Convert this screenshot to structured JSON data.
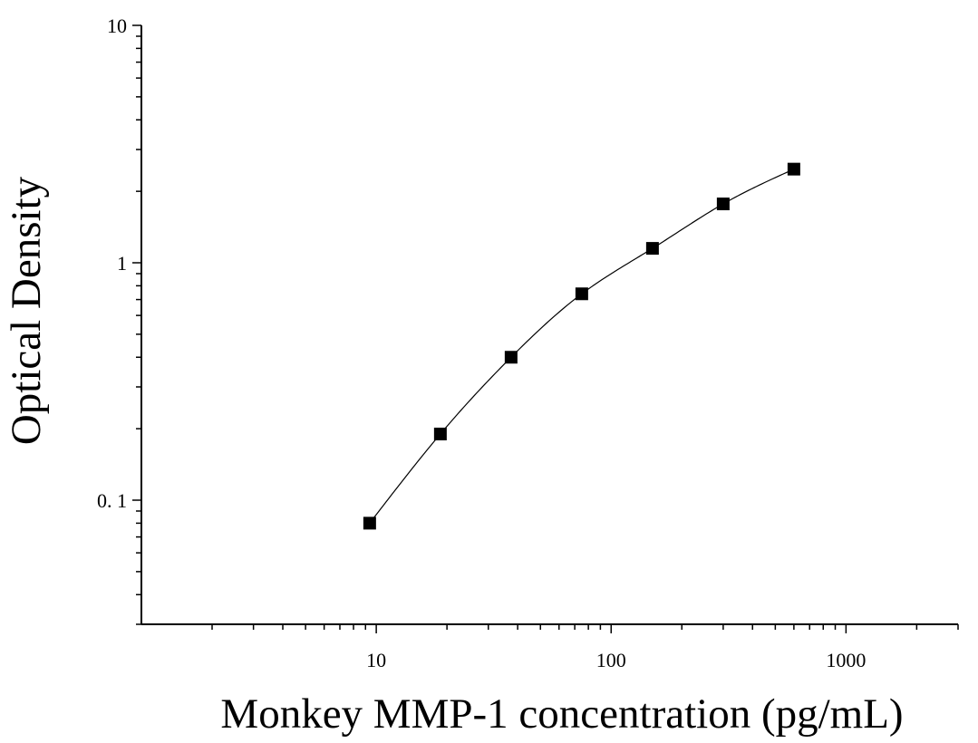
{
  "chart_data": {
    "type": "scatter",
    "title": "",
    "xlabel": "Monkey MMP-1 concentration (pg/mL)",
    "ylabel": "Optical Density",
    "x_scale": "log",
    "y_scale": "log",
    "xlim": [
      1,
      3000
    ],
    "ylim": [
      0.03,
      10
    ],
    "x_tick_labels": [
      "10",
      "100",
      "1000"
    ],
    "y_tick_labels": [
      "0. 1",
      "1",
      "10"
    ],
    "grid": false,
    "legend": "none",
    "marker": "square",
    "marker_color": "#000000",
    "curve_color": "#000000",
    "series": [
      {
        "x": [
          9.375,
          18.75,
          37.5,
          75,
          150,
          300,
          600
        ],
        "y": [
          0.08,
          0.19,
          0.4,
          0.74,
          1.15,
          1.77,
          2.48
        ]
      }
    ]
  }
}
